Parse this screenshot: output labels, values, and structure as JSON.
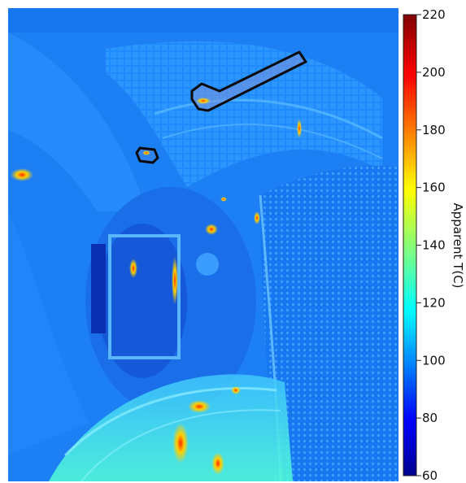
{
  "colorbar": {
    "label": "Apparent T(C)",
    "min": 60,
    "max": 220,
    "ticks": [
      "220",
      "200",
      "180",
      "160",
      "140",
      "120",
      "100",
      "80",
      "60"
    ],
    "colormap": "jet"
  },
  "image": {
    "subject": "infrared-camera-view-of-vessel-interior",
    "background_color": "#1a7ef5",
    "annotation_outline_color": "#0a0a0a"
  }
}
